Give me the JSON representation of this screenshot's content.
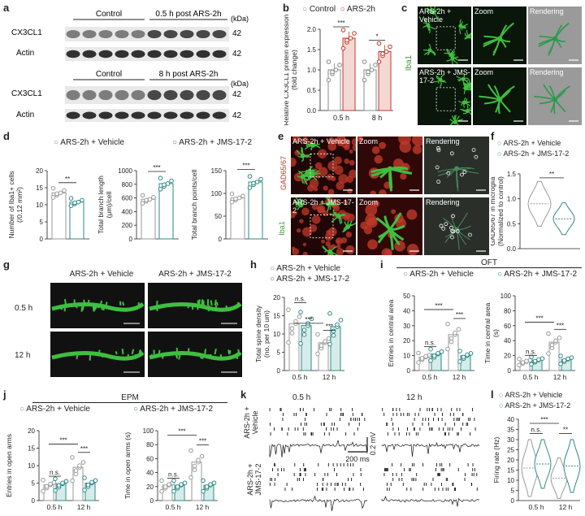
{
  "panel_letters": [
    "a",
    "b",
    "c",
    "d",
    "e",
    "f",
    "g",
    "h",
    "i",
    "j",
    "k",
    "l"
  ],
  "colors": {
    "vehicle": "#9a9a9a",
    "jms": "#2d8a86",
    "control": "#888888",
    "ars": "#c0392b",
    "bar_red_fill": "#f6d8d3",
    "bar_teal_fill": "#d6ecea",
    "green_cell": "#3fbf3f",
    "red_stain": "#c0392b"
  },
  "panel_a": {
    "top_groups": [
      "Control",
      "0.5 h post ARS-2h"
    ],
    "bottom_groups": [
      "Control",
      "8 h post ARS-2h"
    ],
    "rows_top": [
      "CX3CL1",
      "Actin"
    ],
    "rows_bottom": [
      "CX3CL1",
      "Actin"
    ],
    "kda_label": "(kDa)",
    "kda_values": [
      "42",
      "42",
      "42",
      "42"
    ],
    "lanes": 10
  },
  "panel_b": {
    "legend": [
      "Control",
      "ARS-2h"
    ],
    "ylabel": "Relative CX3CL1 protein expression (fold change)",
    "categories": [
      "0.5 h",
      "8 h"
    ],
    "yticks": [
      "0.0",
      "0.5",
      "1.0",
      "1.5",
      "2.0"
    ],
    "sig": [
      "***",
      "*"
    ],
    "chart_data": {
      "type": "bar",
      "categories": [
        "0.5 h",
        "8 h"
      ],
      "series": [
        {
          "name": "Control",
          "values": [
            1.0,
            1.0
          ]
        },
        {
          "name": "ARS-2h",
          "values": [
            1.78,
            1.45
          ]
        }
      ],
      "ylim": [
        0,
        2.0
      ]
    }
  },
  "panel_c": {
    "rows": [
      "ARS-2h + Vehicle",
      "ARS-2h + JMS-17-2"
    ],
    "cols": [
      "Zoom",
      "Rendering"
    ],
    "side_label": "Iba1"
  },
  "panel_d": {
    "legend": [
      "ARS-2h + Vehicle",
      "ARS-2h + JMS-17-2"
    ],
    "charts": [
      {
        "ylabel": "Number of Iba1+ cells (/0.12 mm²)",
        "yticks": [
          "0",
          "5",
          "10",
          "15",
          "20"
        ],
        "ymax": 20,
        "values": [
          13.5,
          10.8
        ],
        "sig": "**"
      },
      {
        "ylabel": "Total branch length (μm)/cell",
        "yticks": [
          "0",
          "200",
          "400",
          "600",
          "800",
          "1000"
        ],
        "ymax": 1000,
        "values": [
          580,
          810
        ],
        "sig": "***"
      },
      {
        "ylabel": "Total branch points/cell",
        "yticks": [
          "0",
          "50",
          "100",
          "150"
        ],
        "ymax": 150,
        "values": [
          90,
          125
        ],
        "sig": "***"
      }
    ]
  },
  "panel_e": {
    "rows": [
      "ARS-2h + Vehicle",
      "ARS-2h + JMS-17-2"
    ],
    "cols": [
      "Zoom",
      "Rendering"
    ],
    "side_labels": [
      "GAD65/67",
      "Iba1"
    ]
  },
  "panel_f": {
    "legend": [
      "ARS-2h + Vehicle",
      "ARS-2h + JMS-17-2"
    ],
    "ylabel": "GAD65/67 in microglia (Normalized to control)",
    "yticks": [
      "0.0",
      "0.5",
      "1.0",
      "1.5"
    ],
    "sig": "**"
  },
  "panel_g": {
    "cols": [
      "ARS-2h + Vehicle",
      "ARS-2h + JMS-17-2"
    ],
    "rows": [
      "0.5 h",
      "12 h"
    ]
  },
  "panel_h": {
    "legend": [
      "ARS-2h + Vehicle",
      "ARS-2h + JMS-17-2"
    ],
    "ylabel": "Total spine density (no. per 10 um)",
    "yticks": [
      "0",
      "5",
      "10",
      "15",
      "20"
    ],
    "categories": [
      "0.5 h",
      "12 h"
    ],
    "sig": [
      "n.s.",
      "***",
      "***"
    ],
    "chart_data": {
      "type": "bar",
      "categories": [
        "0.5 h",
        "12 h"
      ],
      "series": [
        {
          "name": "ARS-2h + Vehicle",
          "values": [
            12.8,
            7.6
          ]
        },
        {
          "name": "ARS-2h + JMS-17-2",
          "values": [
            12.3,
            12.0
          ]
        }
      ],
      "ylim": [
        0,
        20
      ]
    }
  },
  "panel_i": {
    "title": "OFT",
    "legend": [
      "ARS-2h + Vehicle",
      "ARS-2h + JMS-17-2"
    ],
    "charts": [
      {
        "ylabel": "Entries in central area",
        "yticks": [
          "0",
          "10",
          "20",
          "30",
          "40",
          "50"
        ],
        "ymax": 50,
        "categories": [
          "0.5 h",
          "12 h"
        ],
        "values": [
          [
            9,
            11
          ],
          [
            24,
            10
          ]
        ],
        "sig": [
          "n.s.",
          "***",
          "***"
        ]
      },
      {
        "ylabel": "Time in central area (s)",
        "yticks": [
          "0",
          "20",
          "40",
          "60",
          "80",
          "100"
        ],
        "ymax": 100,
        "categories": [
          "0.5 h",
          "12 h"
        ],
        "values": [
          [
            12,
            14
          ],
          [
            38,
            15
          ]
        ],
        "sig": [
          "n.s.",
          "***",
          "***"
        ]
      }
    ]
  },
  "panel_j": {
    "title": "EPM",
    "legend": [
      "ARS-2h + Vehicle",
      "ARS-2h + JMS-17-2"
    ],
    "charts": [
      {
        "ylabel": "Entries in open arms",
        "yticks": [
          "0",
          "5",
          "10",
          "15",
          "20"
        ],
        "ymax": 20,
        "categories": [
          "0.5 h",
          "12 h"
        ],
        "values": [
          [
            4.5,
            4.8
          ],
          [
            9.5,
            5.0
          ]
        ],
        "sig": [
          "n.s.",
          "***",
          "***"
        ]
      },
      {
        "ylabel": "Time in open arms (s)",
        "yticks": [
          "0",
          "20",
          "40",
          "60",
          "80",
          "100"
        ],
        "ymax": 100,
        "categories": [
          "0.5 h",
          "12 h"
        ],
        "values": [
          [
            22,
            22
          ],
          [
            55,
            22
          ]
        ],
        "sig": [
          "n.s.",
          "***",
          "***"
        ]
      }
    ]
  },
  "panel_k": {
    "cols": [
      "0.5 h",
      "12 h"
    ],
    "rows": [
      "ARS-2h + Vehicle",
      "ARS-2h + JMS-17-2"
    ],
    "scale_v": "0.2 mV",
    "scale_h": "200 ms"
  },
  "panel_l": {
    "legend": [
      "ARS-2h + Vehicle",
      "ARS-2h + JMS-17-2"
    ],
    "ylabel": "Firing rate (Hz)",
    "yticks": [
      "0",
      "5",
      "10",
      "15",
      "20",
      "25",
      "30",
      "35",
      "40"
    ],
    "categories": [
      "0.5 h",
      "12 h"
    ],
    "sig": [
      "n.s.",
      "***",
      "**"
    ]
  }
}
